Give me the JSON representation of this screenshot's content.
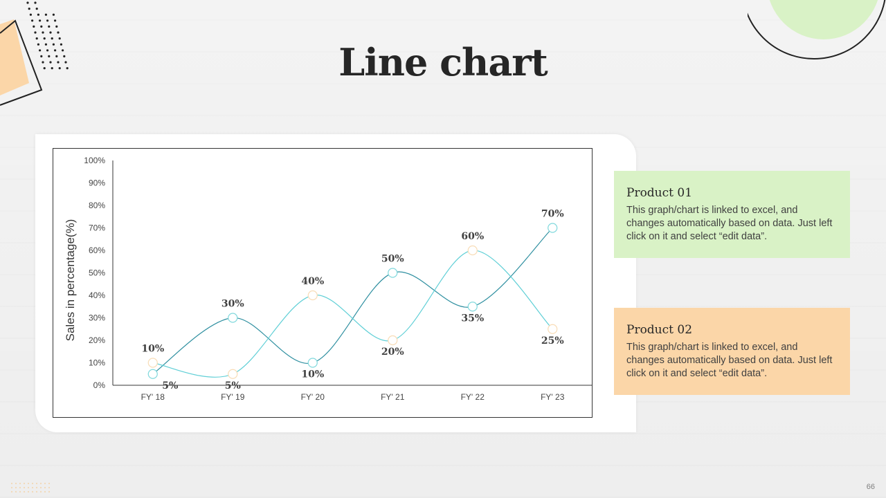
{
  "slide": {
    "title": "Line chart",
    "page_number": "66",
    "accent_green": "#d9f2c6",
    "accent_orange": "#fbd6a8"
  },
  "legend": [
    {
      "title": "Product 01",
      "text": "This graph/chart is linked to excel, and changes automatically based on data. Just left click on it and select “edit data”."
    },
    {
      "title": "Product 02",
      "text": "This graph/chart is linked to excel, and changes automatically based on data. Just left click on it and select “edit data”."
    }
  ],
  "chart_data": {
    "type": "line",
    "categories": [
      "FY' 18",
      "FY' 19",
      "FY' 20",
      "FY' 21",
      "FY' 22",
      "FY' 23"
    ],
    "ylabel": "Sales in percentage(%)",
    "ylim": [
      0,
      100
    ],
    "yticks": [
      "0%",
      "10%",
      "20%",
      "30%",
      "40%",
      "50%",
      "60%",
      "70%",
      "80%",
      "90%",
      "100%"
    ],
    "grid": false,
    "series": [
      {
        "color": "#2e8fa0",
        "marker_color": "#7fd8dc",
        "values": [
          5,
          30,
          10,
          50,
          35,
          70
        ],
        "labels": [
          "5%",
          "30%",
          "10%",
          "50%",
          "35%",
          "70%"
        ]
      },
      {
        "color": "#5fcfd6",
        "marker_color": "#f8dcb6",
        "values": [
          10,
          5,
          40,
          20,
          60,
          25
        ],
        "labels": [
          "10%",
          "5%",
          "40%",
          "20%",
          "60%",
          "25%"
        ]
      }
    ]
  }
}
